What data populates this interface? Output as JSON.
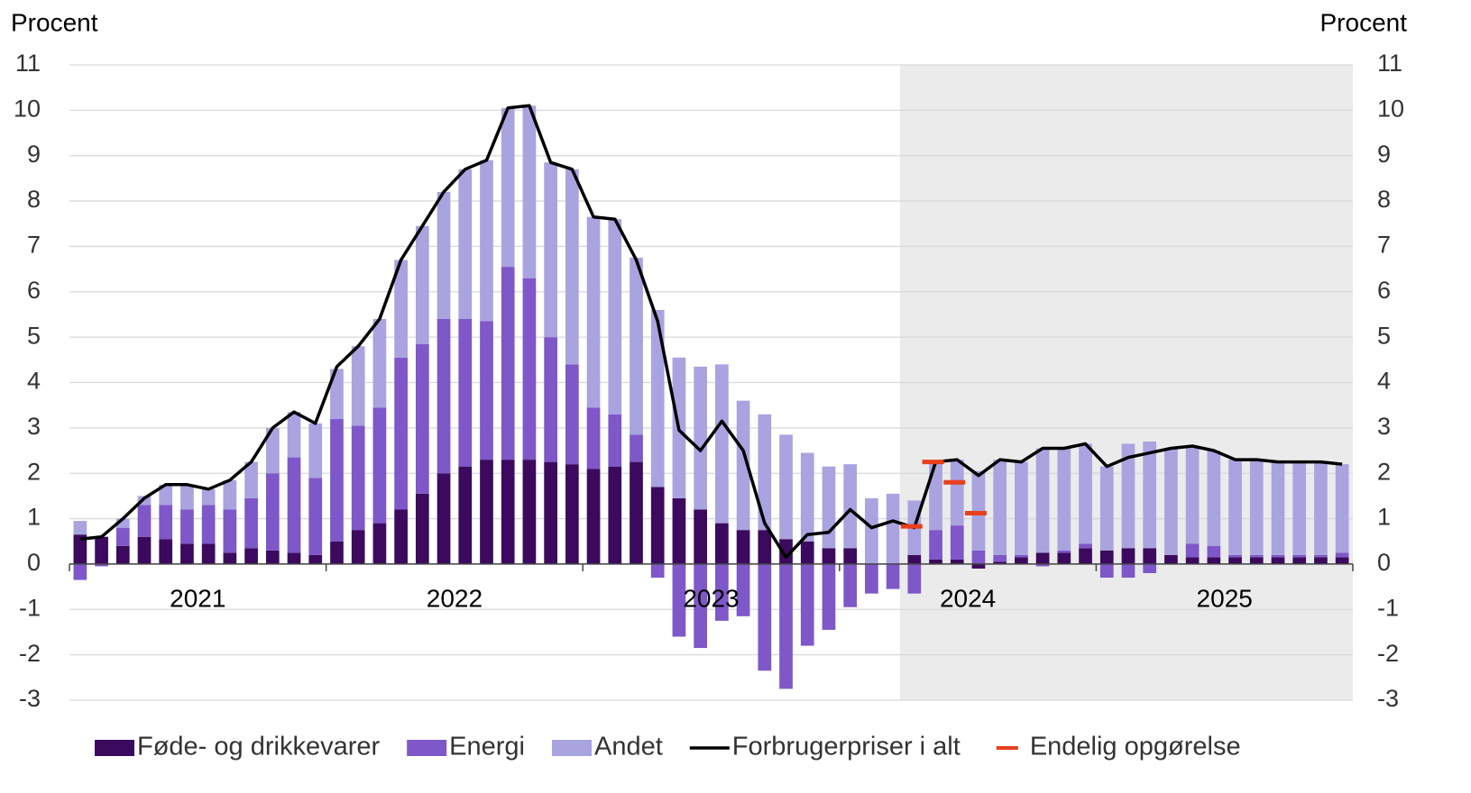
{
  "chart_data": {
    "type": "bar",
    "y_label": "Procent",
    "y2_label": "Procent",
    "categories": [
      "2021",
      null,
      null,
      null,
      null,
      null,
      null,
      null,
      null,
      null,
      null,
      null,
      "2022",
      null,
      null,
      null,
      null,
      null,
      null,
      null,
      null,
      null,
      null,
      null,
      "2023",
      null,
      null,
      null,
      null,
      null,
      null,
      null,
      null,
      null,
      null,
      null,
      "2024",
      null,
      null,
      null,
      null,
      null,
      null,
      null,
      null,
      null,
      null,
      null,
      "2025",
      null,
      null,
      null,
      null,
      null,
      null,
      null,
      null,
      null,
      null,
      null
    ],
    "ylim": [
      -3,
      11
    ],
    "yticks": [
      -3,
      -2,
      -1,
      0,
      1,
      2,
      3,
      4,
      5,
      6,
      7,
      8,
      9,
      10,
      11
    ],
    "y2lim": [
      -3,
      11
    ],
    "y2ticks": [
      -3,
      -2,
      -1,
      0,
      1,
      2,
      3,
      4,
      5,
      6,
      7,
      8,
      9,
      10,
      11
    ],
    "grid": true,
    "legend": "bottom",
    "series": [
      {
        "name": "Føde- og drikkevarer",
        "type": "bar",
        "color": "#3b0a5e",
        "values": [
          0.65,
          0.6,
          0.4,
          0.6,
          0.55,
          0.45,
          0.45,
          0.25,
          0.35,
          0.3,
          0.25,
          0.2,
          0.5,
          0.75,
          0.9,
          1.2,
          1.55,
          2.0,
          2.15,
          2.3,
          2.3,
          2.3,
          2.25,
          2.2,
          2.1,
          2.15,
          2.25,
          1.7,
          1.45,
          1.2,
          0.9,
          0.75,
          0.75,
          0.55,
          0.5,
          0.35,
          0.35,
          0.0,
          0.0,
          0.2,
          0.1,
          0.1,
          -0.1,
          0.05,
          0.15,
          0.25,
          0.25,
          0.35,
          0.3,
          0.35,
          0.35,
          0.2,
          0.15,
          0.15,
          0.15,
          0.15,
          0.15,
          0.15,
          0.15,
          0.15
        ]
      },
      {
        "name": "Energi",
        "type": "bar",
        "color": "#7e57c9",
        "values": [
          -0.35,
          -0.05,
          0.4,
          0.7,
          0.75,
          0.75,
          0.85,
          0.95,
          1.1,
          1.7,
          2.1,
          1.7,
          2.7,
          2.3,
          2.55,
          3.35,
          3.3,
          3.4,
          3.25,
          3.05,
          4.25,
          4.0,
          2.75,
          2.2,
          1.35,
          1.15,
          0.6,
          -0.3,
          -1.6,
          -1.85,
          -1.25,
          -1.15,
          -2.35,
          -2.75,
          -1.8,
          -1.45,
          -0.95,
          -0.65,
          -0.55,
          -0.65,
          0.65,
          0.75,
          0.3,
          0.15,
          0.05,
          -0.05,
          0.05,
          0.1,
          -0.3,
          -0.3,
          -0.2,
          0.0,
          0.3,
          0.25,
          0.05,
          0.05,
          0.05,
          0.05,
          0.05,
          0.1
        ]
      },
      {
        "name": "Andet",
        "type": "bar",
        "color": "#a9a3e0",
        "values": [
          0.3,
          0.0,
          0.2,
          0.2,
          0.45,
          0.55,
          0.35,
          0.65,
          0.8,
          1.0,
          1.0,
          1.2,
          1.1,
          1.75,
          1.95,
          2.15,
          2.6,
          2.8,
          3.3,
          3.55,
          3.5,
          3.8,
          3.85,
          4.3,
          4.2,
          4.3,
          3.9,
          3.9,
          3.1,
          3.15,
          3.5,
          2.85,
          2.55,
          2.3,
          1.95,
          1.8,
          1.85,
          1.45,
          1.55,
          1.2,
          1.5,
          1.45,
          1.75,
          2.1,
          2.05,
          2.3,
          2.25,
          2.2,
          1.85,
          2.3,
          2.35,
          2.35,
          2.15,
          2.1,
          2.1,
          2.1,
          2.05,
          2.05,
          2.05,
          1.95
        ]
      },
      {
        "name": "Forbrugerpriser i alt",
        "type": "line",
        "color": "#000000",
        "values": [
          0.55,
          0.6,
          1.0,
          1.45,
          1.75,
          1.75,
          1.65,
          1.85,
          2.25,
          3.0,
          3.35,
          3.1,
          4.35,
          4.8,
          5.4,
          6.7,
          7.45,
          8.2,
          8.7,
          8.9,
          10.05,
          10.1,
          8.85,
          8.7,
          7.65,
          7.6,
          6.7,
          5.35,
          2.95,
          2.5,
          3.15,
          2.5,
          0.9,
          0.15,
          0.65,
          0.7,
          1.2,
          0.8,
          0.95,
          0.8,
          2.25,
          2.3,
          1.95,
          2.3,
          2.25,
          2.55,
          2.55,
          2.65,
          2.15,
          2.35,
          2.45,
          2.55,
          2.6,
          2.5,
          2.3,
          2.3,
          2.25,
          2.25,
          2.25,
          2.2
        ]
      },
      {
        "name": "Endelig opgørelse",
        "type": "dash",
        "color": "#e8401c",
        "values": [
          null,
          null,
          null,
          null,
          null,
          null,
          null,
          null,
          null,
          null,
          null,
          null,
          null,
          null,
          null,
          null,
          null,
          null,
          null,
          null,
          null,
          null,
          null,
          null,
          null,
          null,
          null,
          null,
          null,
          null,
          null,
          null,
          null,
          null,
          null,
          null,
          null,
          null,
          null,
          0.83,
          2.25,
          1.8,
          1.12,
          null,
          null,
          null,
          null,
          null,
          null,
          null,
          null,
          null,
          null,
          null,
          null,
          null,
          null,
          null,
          null,
          null
        ]
      }
    ]
  }
}
